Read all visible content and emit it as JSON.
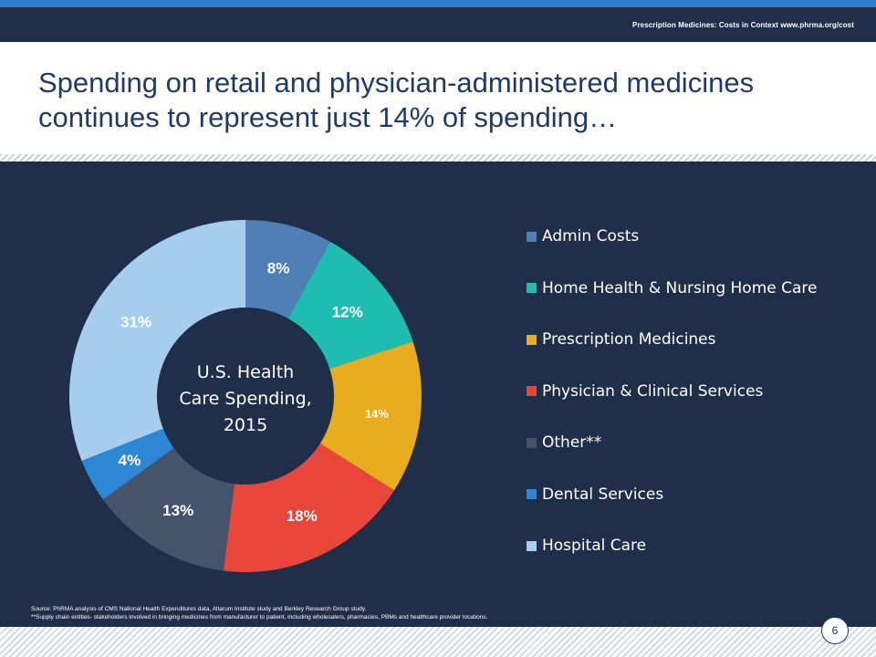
{
  "header": {
    "text": "Prescription Medicines: Costs in Context www.phrma.org/cost"
  },
  "slide": {
    "title_line1": "Spending on retail and physician-administered medicines",
    "title_line2": "continues to represent just 14% of spending…",
    "page_number": "6"
  },
  "colors": {
    "background_panel": "#1f2f49",
    "accent": "#2f7dd1",
    "title": "#1f3a69"
  },
  "chart_data": {
    "type": "pie",
    "center_label": [
      "U.S. Health",
      "Care Spending,",
      "2015"
    ],
    "slices": [
      {
        "name": "Admin Costs",
        "value": 8,
        "label": "8%",
        "color": "#4f7fb4"
      },
      {
        "name": "Home Health & Nursing Home Care",
        "value": 12,
        "label": "12%",
        "color": "#1fbdb1"
      },
      {
        "name": "Prescription Medicines",
        "value": 14,
        "label": "14%",
        "color": "#e9ac1f"
      },
      {
        "name": "Physician & Clinical Services",
        "value": 18,
        "label": "18%",
        "color": "#e8463a"
      },
      {
        "name": "Other**",
        "value": 13,
        "label": "13%",
        "color": "#44546a"
      },
      {
        "name": "Dental Services",
        "value": 4,
        "label": "4%",
        "color": "#2d86d6"
      },
      {
        "name": "Hospital Care",
        "value": 31,
        "label": "31%",
        "color": "#a6cdee"
      }
    ],
    "legend_position": "right"
  },
  "source": {
    "line1": "Source: PhRMA analysis of CMS National Health Expenditures data, Altarum Institute study and Berkley Research Group study.",
    "line2": "**Supply chain entities- stakeholders involved in bringing medicines from manufacturer to patient, including wholesalers, pharmacies, PBMs and healthcare provider locations."
  }
}
